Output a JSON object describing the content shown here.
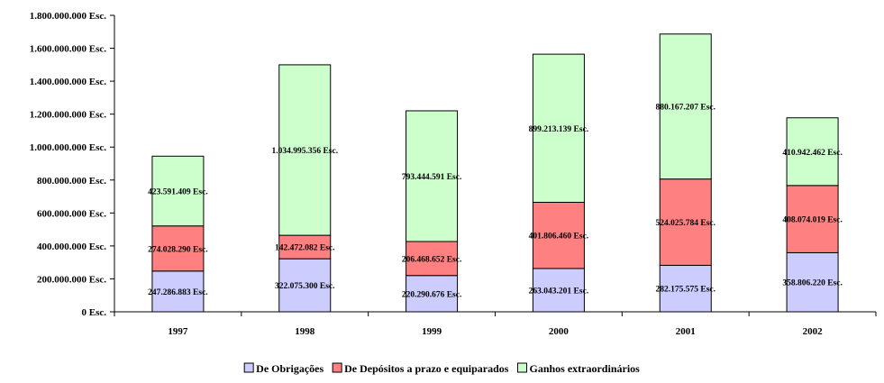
{
  "chart_data": {
    "type": "bar",
    "stacked": true,
    "title": "",
    "xlabel": "",
    "ylabel": "",
    "categories": [
      "1997",
      "1998",
      "1999",
      "2000",
      "2001",
      "2002"
    ],
    "series": [
      {
        "name": "De Obrigações",
        "color": "#ccccff",
        "values": [
          247286883,
          322075300,
          220290676,
          263043201,
          282175575,
          358806220
        ],
        "labels": [
          "247.286.883 Esc.",
          "322.075.300 Esc.",
          "220.290.676 Esc.",
          "263.043.201 Esc.",
          "282.175.575 Esc.",
          "358.806.220 Esc."
        ]
      },
      {
        "name": "De Depósitos a prazo e equiparados",
        "color": "#ff8080",
        "values": [
          274028290,
          142472082,
          206468652,
          401806460,
          524025784,
          408074019
        ],
        "labels": [
          "274.028.290 Esc.",
          "142.472.082 Esc.",
          "206.468.652 Esc.",
          "401.806.460 Esc.",
          "524.025.784 Esc.",
          "408.074.019 Esc."
        ]
      },
      {
        "name": "Ganhos extraordinários",
        "color": "#ccffcc",
        "values": [
          423591409,
          1034995356,
          793444591,
          899213139,
          880167207,
          410942462
        ],
        "labels": [
          "423.591.409 Esc.",
          "1.034.995.356 Esc.",
          "793.444.591 Esc.",
          "899.213.139 Esc.",
          "880.167.207 Esc.",
          "410.942.462 Esc."
        ]
      }
    ],
    "ylim": [
      0,
      1800000000
    ],
    "y_ticks": [
      0,
      200000000,
      400000000,
      600000000,
      800000000,
      1000000000,
      1200000000,
      1400000000,
      1600000000,
      1800000000
    ],
    "y_tick_labels": [
      "0 Esc.",
      "200.000.000 Esc.",
      "400.000.000 Esc.",
      "600.000.000 Esc.",
      "800.000.000 Esc.",
      "1.000.000.000 Esc.",
      "1.200.000.000 Esc.",
      "1.400.000.000 Esc.",
      "1.600.000.000 Esc.",
      "1.800.000.000 Esc."
    ],
    "grid": false,
    "legend_position": "bottom"
  }
}
